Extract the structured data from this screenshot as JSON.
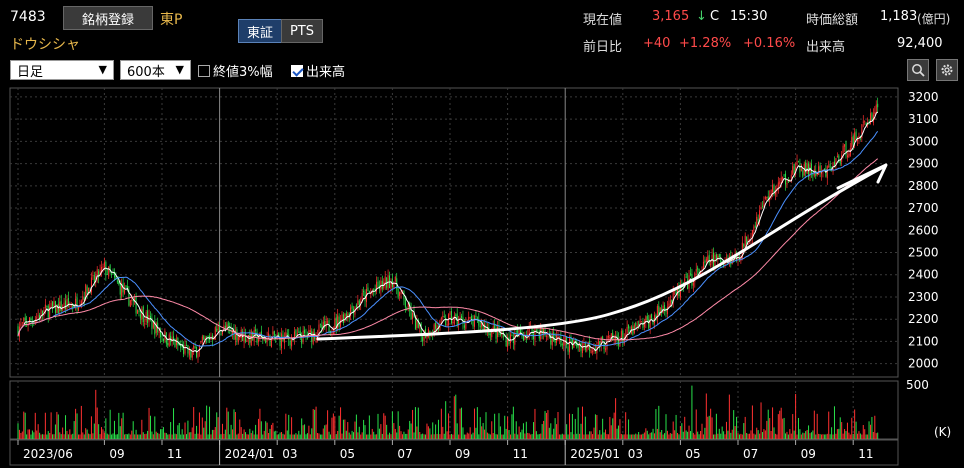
{
  "header": {
    "code": "7483",
    "register_button": "銘柄登録",
    "market": "東P",
    "company_name": "ドウシシャ",
    "exchange_tabs": [
      {
        "label": "東証",
        "active": true
      },
      {
        "label": "PTS",
        "active": false
      }
    ],
    "price_label": "現在値",
    "price": "3,165",
    "price_arrow": "↓",
    "price_flag": "C",
    "price_time": "15:30",
    "mcap_label": "時価総額",
    "mcap_value": "1,183",
    "mcap_unit": "(億円)",
    "change_label": "前日比",
    "change": "+40",
    "change_pct": "+1.28%",
    "change_pct2": "+0.16%",
    "volume_label": "出来高",
    "volume": "92,400"
  },
  "toolbar": {
    "period": "日足",
    "count": "600本",
    "option_close3": {
      "label": "終値3%幅",
      "checked": false
    },
    "option_volume": {
      "label": "出来高",
      "checked": true
    },
    "icons": [
      "zoom-icon",
      "gear-icon"
    ]
  },
  "colors": {
    "up": "#ff3030",
    "down": "#28e04a",
    "ma_short": "#ffffff",
    "ma_mid": "#4a90ff",
    "ma_long": "#ff8aa8",
    "grid": "#3a3a3a",
    "trend_line": "#ffffff"
  },
  "chart_data": {
    "type": "candlestick",
    "x_tick_labels": [
      "2023/06",
      "09",
      "11",
      "2024/01",
      "03",
      "05",
      "07",
      "09",
      "11",
      "2025/01",
      "03",
      "05",
      "07",
      "09",
      "11"
    ],
    "y_ticks": [
      2000,
      2100,
      2200,
      2300,
      2400,
      2500,
      2600,
      2700,
      2800,
      2900,
      3000,
      3100,
      3200
    ],
    "ylim": [
      1940,
      3240
    ],
    "volume_axis": {
      "max_label": "500",
      "unit": "(K)",
      "max": 500
    },
    "close_anchors": [
      [
        "2023/06",
        2160
      ],
      [
        "2023/07",
        2240
      ],
      [
        "2023/08",
        2270
      ],
      [
        "2023/09",
        2430
      ],
      [
        "2023/10",
        2270
      ],
      [
        "2023/11",
        2130
      ],
      [
        "2023/12",
        2040
      ],
      [
        "2024/01",
        2160
      ],
      [
        "2024/02",
        2120
      ],
      [
        "2024/03",
        2110
      ],
      [
        "2024/04",
        2120
      ],
      [
        "2024/05",
        2180
      ],
      [
        "2024/06",
        2300
      ],
      [
        "2024/07",
        2380
      ],
      [
        "2024/08",
        2130
      ],
      [
        "2024/09",
        2200
      ],
      [
        "2024/10",
        2180
      ],
      [
        "2024/11",
        2110
      ],
      [
        "2024/12",
        2150
      ],
      [
        "2025/01",
        2090
      ],
      [
        "2025/02",
        2080
      ],
      [
        "2025/03",
        2120
      ],
      [
        "2025/04",
        2200
      ],
      [
        "2025/05",
        2330
      ],
      [
        "2025/06",
        2460
      ],
      [
        "2025/07",
        2480
      ],
      [
        "2025/08",
        2750
      ],
      [
        "2025/09",
        2880
      ],
      [
        "2025/10",
        2850
      ],
      [
        "2025/11",
        3000
      ],
      [
        "2025/11 end",
        3165
      ]
    ],
    "moving_averages": [
      "short",
      "mid",
      "long"
    ],
    "annotation": "hand-drawn curved trend line with arrow"
  }
}
